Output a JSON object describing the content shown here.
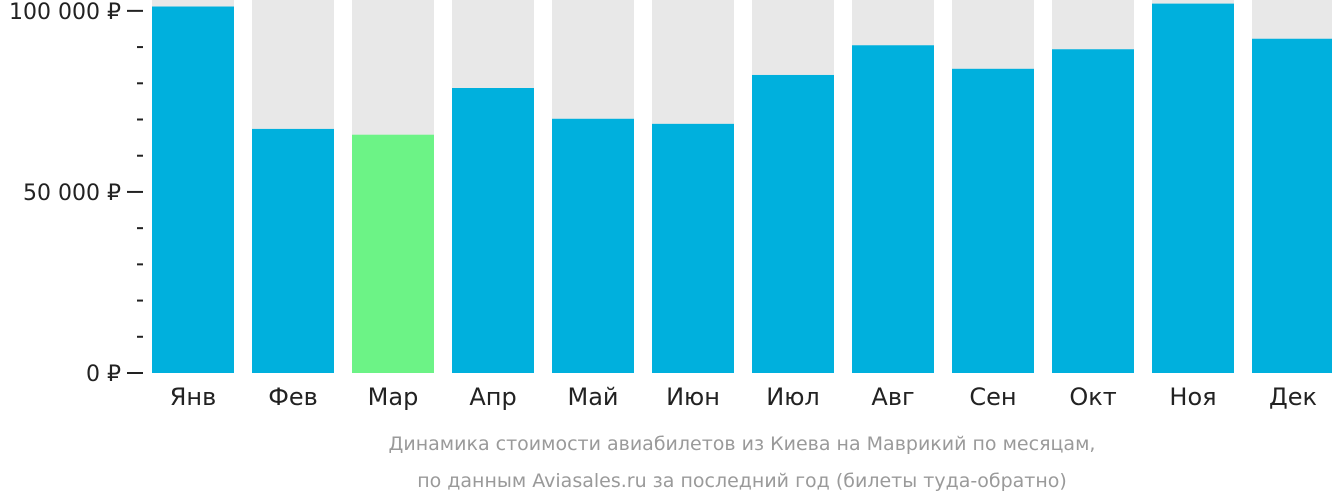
{
  "chart_data": {
    "type": "bar",
    "categories": [
      "Янв",
      "Фев",
      "Мар",
      "Апр",
      "Май",
      "Июн",
      "Июл",
      "Авг",
      "Сен",
      "Окт",
      "Ноя",
      "Дек"
    ],
    "values": [
      101200,
      67400,
      65800,
      78700,
      70200,
      68800,
      82300,
      90500,
      84000,
      89400,
      102000,
      92300
    ],
    "highlight_index": 2,
    "ylim": [
      0,
      103000
    ],
    "y_ticks_major": [
      {
        "value": 0,
        "label": "0 ₽"
      },
      {
        "value": 50000,
        "label": "50 000 ₽"
      },
      {
        "value": 100000,
        "label": "100 000 ₽"
      }
    ],
    "y_ticks_minor": [
      10000,
      20000,
      30000,
      40000,
      60000,
      70000,
      80000,
      90000
    ],
    "caption_lines": [
      "Динамика стоимости авиабилетов из Киева на Маврикий по месяцам,",
      "по данным Aviasales.ru за последний год (билеты туда-обратно)"
    ],
    "colors": {
      "bar": "#00b0dd",
      "highlight": "#6cf386",
      "track": "#e8e8e8",
      "axis": "#222222",
      "text": "#222222",
      "caption": "#9a9a9a"
    },
    "grid": false,
    "legend": "none"
  }
}
